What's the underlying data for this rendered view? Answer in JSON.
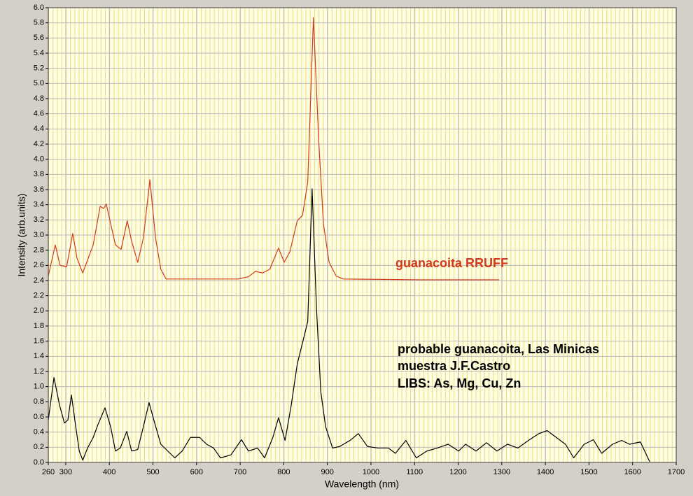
{
  "chart_data": {
    "type": "line",
    "xlabel": "Wavelength (nm)",
    "ylabel": "Intensity (arb.units)",
    "xlim": [
      260,
      1700
    ],
    "ylim": [
      0,
      6
    ],
    "xticks": [
      260,
      300,
      400,
      500,
      600,
      700,
      800,
      900,
      1000,
      1100,
      1200,
      1300,
      1400,
      1500,
      1600,
      1700
    ],
    "yticks": [
      {
        "value": 0,
        "label": "0.0"
      },
      0.2,
      0.4,
      0.6,
      0.8,
      {
        "value": 1,
        "label": "1.0"
      },
      1.2,
      1.4,
      1.6,
      1.8,
      {
        "value": 2,
        "label": "2.0"
      },
      2.2,
      2.4,
      2.6,
      2.8,
      {
        "value": 3,
        "label": "3.0"
      },
      3.2,
      3.4,
      3.6,
      3.8,
      {
        "value": 4,
        "label": "4.0"
      },
      4.2,
      4.4,
      4.6,
      4.8,
      {
        "value": 5,
        "label": "5.0"
      },
      5.2,
      5.4,
      5.6,
      5.8,
      {
        "value": 6,
        "label": "6.0"
      }
    ],
    "grid": true,
    "series": [
      {
        "color": "#d23a1a",
        "x": [
          260,
          276,
          287,
          302,
          316,
          326,
          339,
          350,
          363,
          379,
          387,
          393,
          403,
          414,
          427,
          441,
          451,
          465,
          478,
          493,
          506,
          518,
          530,
          631,
          695,
          719,
          735,
          752,
          768,
          788,
          801,
          814,
          831,
          843,
          855,
          868,
          880,
          891,
          904,
          920,
          936,
          1112,
          1294
        ],
        "values": [
          2.46,
          2.87,
          2.6,
          2.58,
          3.02,
          2.69,
          2.5,
          2.67,
          2.87,
          3.38,
          3.35,
          3.41,
          3.15,
          2.87,
          2.81,
          3.19,
          2.92,
          2.64,
          2.96,
          3.73,
          2.96,
          2.55,
          2.42,
          2.42,
          2.42,
          2.45,
          2.52,
          2.5,
          2.55,
          2.83,
          2.64,
          2.78,
          3.19,
          3.26,
          3.7,
          5.87,
          4.26,
          3.15,
          2.64,
          2.46,
          2.42,
          2.41,
          2.41
        ]
      },
      {
        "color": "#000000",
        "x": [
          260,
          273,
          286,
          297,
          305,
          313,
          323,
          331,
          339,
          350,
          363,
          374,
          390,
          403,
          414,
          425,
          440,
          451,
          465,
          478,
          491,
          502,
          518,
          534,
          550,
          567,
          586,
          607,
          623,
          639,
          655,
          679,
          703,
          719,
          740,
          756,
          775,
          788,
          803,
          817,
          831,
          847,
          855,
          865,
          875,
          885,
          896,
          912,
          928,
          952,
          971,
          992,
          1016,
          1040,
          1056,
          1080,
          1104,
          1128,
          1152,
          1177,
          1201,
          1217,
          1241,
          1265,
          1289,
          1313,
          1337,
          1361,
          1385,
          1404,
          1425,
          1446,
          1465,
          1489,
          1510,
          1529,
          1554,
          1575,
          1593,
          1618,
          1639
        ],
        "values": [
          0.56,
          1.12,
          0.75,
          0.52,
          0.56,
          0.89,
          0.47,
          0.15,
          0.03,
          0.19,
          0.33,
          0.5,
          0.72,
          0.47,
          0.15,
          0.19,
          0.41,
          0.15,
          0.17,
          0.47,
          0.79,
          0.56,
          0.24,
          0.15,
          0.06,
          0.15,
          0.33,
          0.33,
          0.24,
          0.19,
          0.06,
          0.1,
          0.3,
          0.15,
          0.19,
          0.06,
          0.33,
          0.59,
          0.29,
          0.75,
          1.3,
          1.67,
          1.86,
          3.61,
          2.04,
          0.93,
          0.47,
          0.19,
          0.21,
          0.29,
          0.38,
          0.21,
          0.19,
          0.19,
          0.12,
          0.29,
          0.06,
          0.15,
          0.19,
          0.24,
          0.15,
          0.24,
          0.15,
          0.26,
          0.15,
          0.24,
          0.19,
          0.29,
          0.38,
          0.42,
          0.33,
          0.24,
          0.06,
          0.24,
          0.3,
          0.12,
          0.24,
          0.29,
          0.24,
          0.27,
          0.01
        ]
      }
    ],
    "annotations": [
      {
        "text": "guanacoita RRUFF",
        "color": "#d23a1a"
      },
      {
        "text": "probable guanacoita, Las Minicas",
        "color": "#000000"
      },
      {
        "text": "muestra J.F.Castro",
        "color": "#000000"
      },
      {
        "text": "LIBS: As, Mg, Cu, Zn",
        "color": "#000000"
      }
    ]
  }
}
